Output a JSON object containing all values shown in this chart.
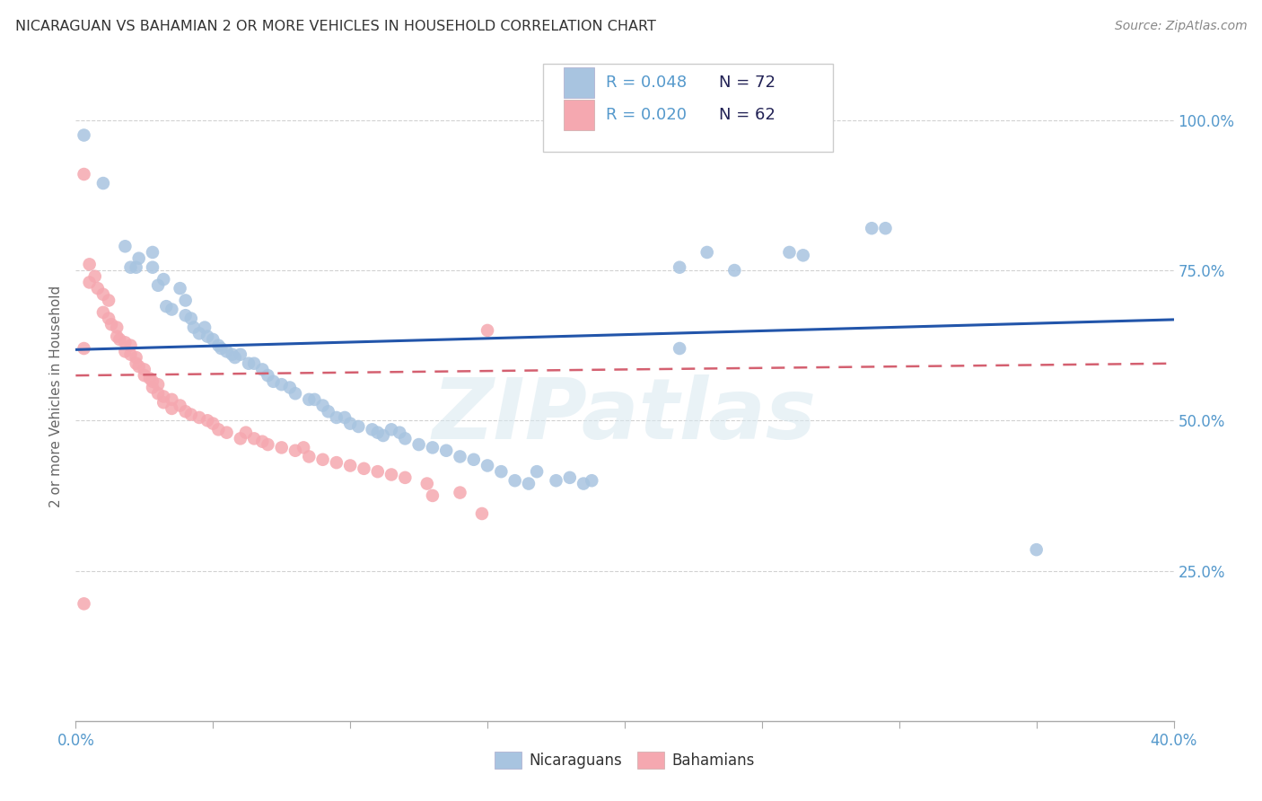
{
  "title": "NICARAGUAN VS BAHAMIAN 2 OR MORE VEHICLES IN HOUSEHOLD CORRELATION CHART",
  "source": "Source: ZipAtlas.com",
  "ylabel": "2 or more Vehicles in Household",
  "xlim": [
    0.0,
    0.4
  ],
  "ylim": [
    0.0,
    1.08
  ],
  "yticks": [
    0.25,
    0.5,
    0.75,
    1.0
  ],
  "ytick_labels": [
    "25.0%",
    "50.0%",
    "75.0%",
    "100.0%"
  ],
  "xtick_positions": [
    0.0,
    0.05,
    0.1,
    0.15,
    0.2,
    0.25,
    0.3,
    0.35,
    0.4
  ],
  "legend_r_blue": "R = 0.048",
  "legend_n_blue": "N = 72",
  "legend_r_pink": "R = 0.020",
  "legend_n_pink": "N = 62",
  "blue_color": "#a8c4e0",
  "pink_color": "#f5a8b0",
  "blue_line_color": "#2255aa",
  "pink_line_color": "#d46070",
  "axis_tick_color": "#5599cc",
  "grid_color": "#cccccc",
  "background_color": "#ffffff",
  "watermark": "ZIPatlas",
  "blue_scatter": [
    [
      0.003,
      0.975
    ],
    [
      0.01,
      0.895
    ],
    [
      0.018,
      0.79
    ],
    [
      0.02,
      0.755
    ],
    [
      0.022,
      0.755
    ],
    [
      0.023,
      0.77
    ],
    [
      0.028,
      0.755
    ],
    [
      0.028,
      0.78
    ],
    [
      0.03,
      0.725
    ],
    [
      0.032,
      0.735
    ],
    [
      0.033,
      0.69
    ],
    [
      0.035,
      0.685
    ],
    [
      0.038,
      0.72
    ],
    [
      0.04,
      0.7
    ],
    [
      0.04,
      0.675
    ],
    [
      0.042,
      0.67
    ],
    [
      0.043,
      0.655
    ],
    [
      0.045,
      0.645
    ],
    [
      0.047,
      0.655
    ],
    [
      0.048,
      0.64
    ],
    [
      0.05,
      0.635
    ],
    [
      0.052,
      0.625
    ],
    [
      0.053,
      0.62
    ],
    [
      0.055,
      0.615
    ],
    [
      0.057,
      0.61
    ],
    [
      0.058,
      0.605
    ],
    [
      0.06,
      0.61
    ],
    [
      0.063,
      0.595
    ],
    [
      0.065,
      0.595
    ],
    [
      0.068,
      0.585
    ],
    [
      0.07,
      0.575
    ],
    [
      0.072,
      0.565
    ],
    [
      0.075,
      0.56
    ],
    [
      0.078,
      0.555
    ],
    [
      0.08,
      0.545
    ],
    [
      0.085,
      0.535
    ],
    [
      0.087,
      0.535
    ],
    [
      0.09,
      0.525
    ],
    [
      0.092,
      0.515
    ],
    [
      0.095,
      0.505
    ],
    [
      0.098,
      0.505
    ],
    [
      0.1,
      0.495
    ],
    [
      0.103,
      0.49
    ],
    [
      0.108,
      0.485
    ],
    [
      0.11,
      0.48
    ],
    [
      0.112,
      0.475
    ],
    [
      0.115,
      0.485
    ],
    [
      0.118,
      0.48
    ],
    [
      0.12,
      0.47
    ],
    [
      0.125,
      0.46
    ],
    [
      0.13,
      0.455
    ],
    [
      0.135,
      0.45
    ],
    [
      0.14,
      0.44
    ],
    [
      0.145,
      0.435
    ],
    [
      0.15,
      0.425
    ],
    [
      0.155,
      0.415
    ],
    [
      0.16,
      0.4
    ],
    [
      0.165,
      0.395
    ],
    [
      0.168,
      0.415
    ],
    [
      0.175,
      0.4
    ],
    [
      0.18,
      0.405
    ],
    [
      0.185,
      0.395
    ],
    [
      0.188,
      0.4
    ],
    [
      0.22,
      0.755
    ],
    [
      0.23,
      0.78
    ],
    [
      0.24,
      0.75
    ],
    [
      0.26,
      0.78
    ],
    [
      0.265,
      0.775
    ],
    [
      0.29,
      0.82
    ],
    [
      0.295,
      0.82
    ],
    [
      0.35,
      0.285
    ],
    [
      0.22,
      0.62
    ]
  ],
  "pink_scatter": [
    [
      0.003,
      0.91
    ],
    [
      0.005,
      0.76
    ],
    [
      0.005,
      0.73
    ],
    [
      0.007,
      0.74
    ],
    [
      0.008,
      0.72
    ],
    [
      0.01,
      0.71
    ],
    [
      0.01,
      0.68
    ],
    [
      0.012,
      0.7
    ],
    [
      0.012,
      0.67
    ],
    [
      0.013,
      0.66
    ],
    [
      0.015,
      0.655
    ],
    [
      0.015,
      0.64
    ],
    [
      0.016,
      0.635
    ],
    [
      0.018,
      0.63
    ],
    [
      0.018,
      0.615
    ],
    [
      0.02,
      0.625
    ],
    [
      0.02,
      0.61
    ],
    [
      0.022,
      0.605
    ],
    [
      0.022,
      0.595
    ],
    [
      0.023,
      0.59
    ],
    [
      0.025,
      0.585
    ],
    [
      0.025,
      0.575
    ],
    [
      0.027,
      0.57
    ],
    [
      0.028,
      0.565
    ],
    [
      0.028,
      0.555
    ],
    [
      0.03,
      0.56
    ],
    [
      0.03,
      0.545
    ],
    [
      0.032,
      0.54
    ],
    [
      0.032,
      0.53
    ],
    [
      0.035,
      0.535
    ],
    [
      0.035,
      0.52
    ],
    [
      0.038,
      0.525
    ],
    [
      0.04,
      0.515
    ],
    [
      0.042,
      0.51
    ],
    [
      0.045,
      0.505
    ],
    [
      0.048,
      0.5
    ],
    [
      0.05,
      0.495
    ],
    [
      0.052,
      0.485
    ],
    [
      0.055,
      0.48
    ],
    [
      0.06,
      0.47
    ],
    [
      0.062,
      0.48
    ],
    [
      0.065,
      0.47
    ],
    [
      0.068,
      0.465
    ],
    [
      0.07,
      0.46
    ],
    [
      0.075,
      0.455
    ],
    [
      0.08,
      0.45
    ],
    [
      0.083,
      0.455
    ],
    [
      0.085,
      0.44
    ],
    [
      0.09,
      0.435
    ],
    [
      0.095,
      0.43
    ],
    [
      0.1,
      0.425
    ],
    [
      0.105,
      0.42
    ],
    [
      0.11,
      0.415
    ],
    [
      0.115,
      0.41
    ],
    [
      0.12,
      0.405
    ],
    [
      0.128,
      0.395
    ],
    [
      0.13,
      0.375
    ],
    [
      0.14,
      0.38
    ],
    [
      0.148,
      0.345
    ],
    [
      0.003,
      0.195
    ],
    [
      0.15,
      0.65
    ],
    [
      0.003,
      0.62
    ]
  ],
  "blue_trendline_x": [
    0.0,
    0.4
  ],
  "blue_trendline_y": [
    0.618,
    0.668
  ],
  "pink_trendline_x": [
    0.0,
    0.4
  ],
  "pink_trendline_y": [
    0.575,
    0.595
  ]
}
